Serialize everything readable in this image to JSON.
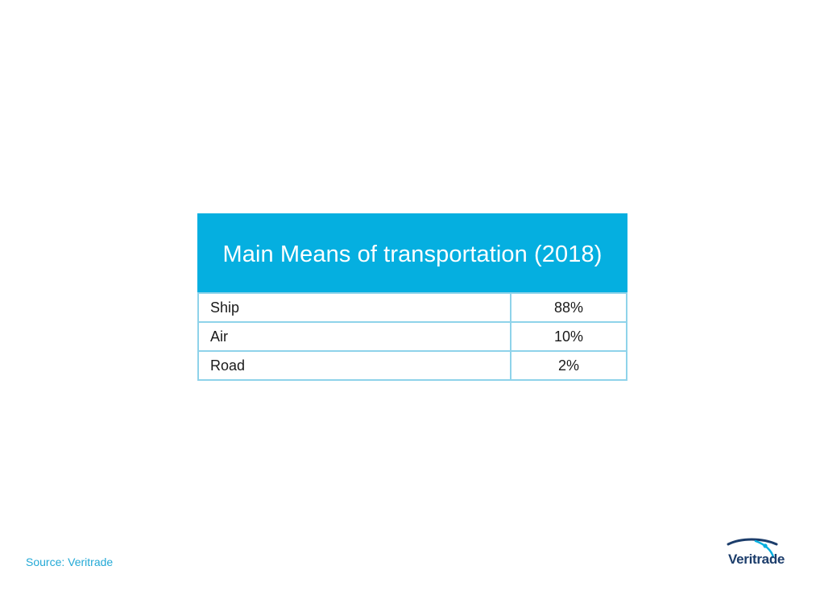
{
  "chart_data": {
    "type": "table",
    "title": "Main Means of transportation (2018)",
    "rows": [
      {
        "category": "Ship",
        "value": "88%"
      },
      {
        "category": "Air",
        "value": "10%"
      },
      {
        "category": "Road",
        "value": "2%"
      }
    ],
    "colors": {
      "header_background": "#05afe0",
      "header_text": "#ffffff",
      "border": "#8fd3ea",
      "source_text": "#23a9d6",
      "logo": "#1c3d6b"
    }
  },
  "footer": {
    "source": "Source: Veritrade"
  },
  "logo": {
    "text": "Veritrade",
    "icon": "veritrade-swoosh-icon"
  }
}
